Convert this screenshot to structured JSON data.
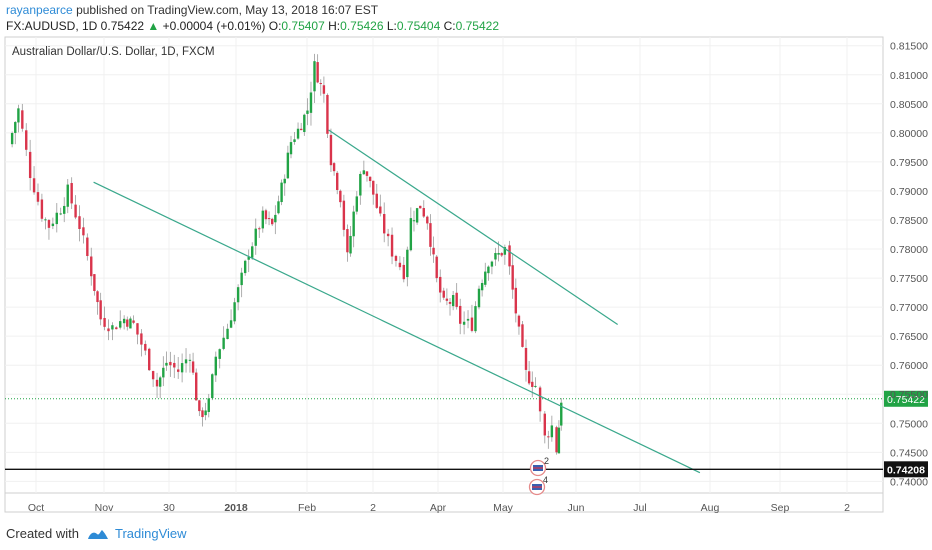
{
  "header": {
    "author": "rayanpearce",
    "published_text": "published on TradingView.com, May 13, 2018 16:07 EST",
    "symbol_line_prefix": "FX:AUDUSD, 1D 0.75422",
    "change_arrow": "▲",
    "change_text": "+0.00004 (+0.01%)",
    "o_label": "O:",
    "o_value": "0.75407",
    "h_label": "H:",
    "h_value": "0.75426",
    "l_label": "L:",
    "l_value": "0.75404",
    "c_label": "C:",
    "c_value": "0.75422"
  },
  "footer": {
    "created_with": "Created with",
    "brand": "TradingView"
  },
  "colors": {
    "up": "#21a345",
    "down": "#d9344b",
    "trendline": "#3aa88c",
    "price_line": "#21a345",
    "axis_text": "#555555",
    "grid": "#f0f0f0"
  },
  "chart_data": {
    "type": "candlestick",
    "title": "Australian Dollar/U.S. Dollar, 1D, FXCM",
    "x_tick_labels": [
      "Oct",
      "Nov",
      "30",
      "2018",
      "Feb",
      "2",
      "Apr",
      "May",
      "Jun",
      "Jul",
      "Aug",
      "Sep",
      "2"
    ],
    "y_tick_labels": [
      "0.81500",
      "0.81000",
      "0.80500",
      "0.80000",
      "0.79500",
      "0.79000",
      "0.78500",
      "0.78000",
      "0.77500",
      "0.77000",
      "0.76500",
      "0.76000",
      "0.75500",
      "0.75000",
      "0.74500",
      "0.74000"
    ],
    "ylim": [
      0.738,
      0.8165
    ],
    "last_price": {
      "value": 0.75422,
      "label": "0.75422"
    },
    "horizontal_level": {
      "value": 0.74208,
      "label": "0.74208"
    },
    "channel_lines": [
      {
        "from": [
          "2017-10-24",
          0.7915
        ],
        "to": [
          "2018-07-09",
          0.7415
        ]
      },
      {
        "from": [
          "2018-02-01",
          0.8005
        ],
        "to": [
          "2018-06-04",
          0.767
        ]
      }
    ],
    "event_markers": [
      "2",
      "4"
    ],
    "close_path": [
      [
        "2017-09-18",
        0.798
      ],
      [
        "2017-09-22",
        0.804
      ],
      [
        "2017-09-27",
        0.793
      ],
      [
        "2017-10-02",
        0.786
      ],
      [
        "2017-10-05",
        0.784
      ],
      [
        "2017-10-10",
        0.787
      ],
      [
        "2017-10-13",
        0.79
      ],
      [
        "2017-10-18",
        0.784
      ],
      [
        "2017-10-23",
        0.776
      ],
      [
        "2017-10-27",
        0.768
      ],
      [
        "2017-11-01",
        0.7665
      ],
      [
        "2017-11-06",
        0.768
      ],
      [
        "2017-11-10",
        0.767
      ],
      [
        "2017-11-15",
        0.762
      ],
      [
        "2017-11-20",
        0.7565
      ],
      [
        "2017-11-24",
        0.7605
      ],
      [
        "2017-11-29",
        0.759
      ],
      [
        "2017-12-04",
        0.762
      ],
      [
        "2017-12-08",
        0.751
      ],
      [
        "2017-12-12",
        0.7535
      ],
      [
        "2017-12-15",
        0.7615
      ],
      [
        "2017-12-20",
        0.7665
      ],
      [
        "2017-12-26",
        0.775
      ],
      [
        "2017-12-29",
        0.7795
      ],
      [
        "2018-01-04",
        0.7855
      ],
      [
        "2018-01-08",
        0.784
      ],
      [
        "2018-01-12",
        0.7905
      ],
      [
        "2018-01-16",
        0.7985
      ],
      [
        "2018-01-19",
        0.8005
      ],
      [
        "2018-01-23",
        0.804
      ],
      [
        "2018-01-26",
        0.8115
      ],
      [
        "2018-01-30",
        0.8065
      ],
      [
        "2018-02-02",
        0.7955
      ],
      [
        "2018-02-06",
        0.789
      ],
      [
        "2018-02-09",
        0.7785
      ],
      [
        "2018-02-13",
        0.79
      ],
      [
        "2018-02-16",
        0.7945
      ],
      [
        "2018-02-20",
        0.7895
      ],
      [
        "2018-02-23",
        0.785
      ],
      [
        "2018-02-28",
        0.7795
      ],
      [
        "2018-03-05",
        0.776
      ],
      [
        "2018-03-08",
        0.785
      ],
      [
        "2018-03-12",
        0.7875
      ],
      [
        "2018-03-15",
        0.785
      ],
      [
        "2018-03-19",
        0.7745
      ],
      [
        "2018-03-22",
        0.7705
      ],
      [
        "2018-03-26",
        0.771
      ],
      [
        "2018-03-29",
        0.7675
      ],
      [
        "2018-04-03",
        0.767
      ],
      [
        "2018-04-06",
        0.7735
      ],
      [
        "2018-04-10",
        0.778
      ],
      [
        "2018-04-13",
        0.7785
      ],
      [
        "2018-04-17",
        0.78
      ],
      [
        "2018-04-19",
        0.7765
      ],
      [
        "2018-04-23",
        0.7655
      ],
      [
        "2018-04-26",
        0.7585
      ],
      [
        "2018-04-30",
        0.7565
      ],
      [
        "2018-05-02",
        0.7515
      ],
      [
        "2018-05-04",
        0.7475
      ],
      [
        "2018-05-07",
        0.7495
      ],
      [
        "2018-05-09",
        0.7455
      ],
      [
        "2018-05-10",
        0.7495
      ],
      [
        "2018-05-11",
        0.7542
      ]
    ]
  }
}
